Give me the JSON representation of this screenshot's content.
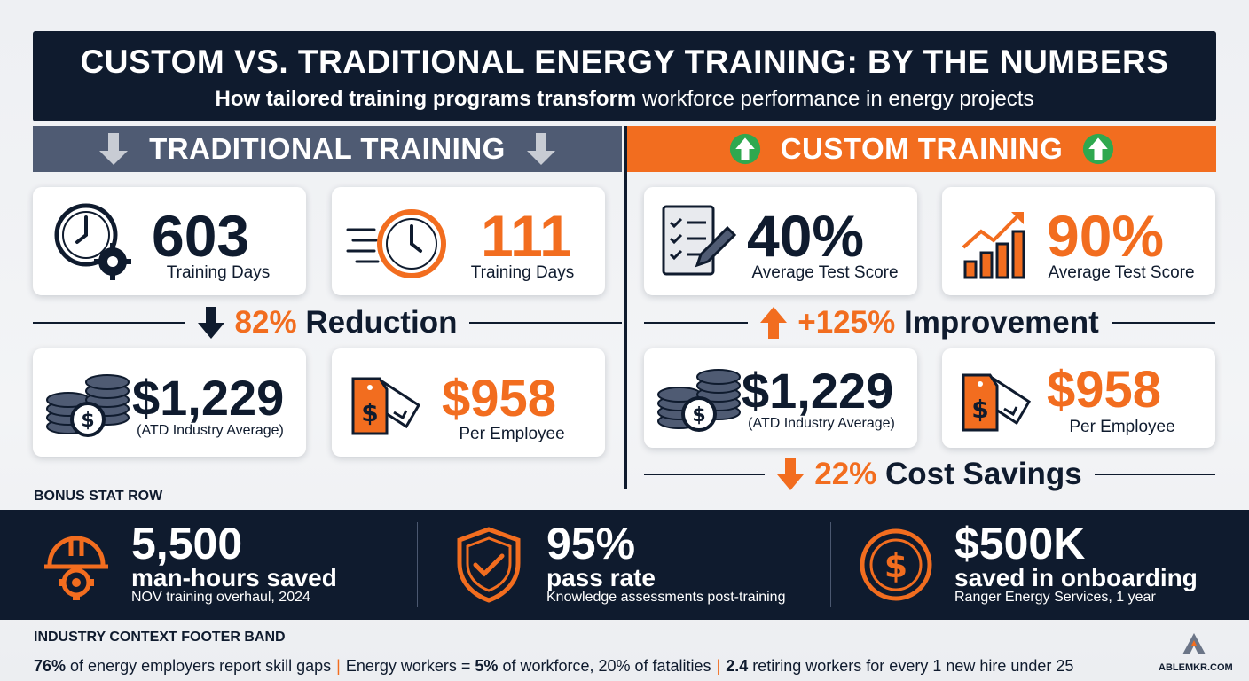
{
  "header": {
    "title": "CUSTOM VS. TRADITIONAL ENERGY TRAINING: BY THE NUMBERS",
    "subtitle_bold": "How tailored training programs transform",
    "subtitle_rest": "workforce performance in energy projects"
  },
  "traditional": {
    "heading": "TRADITIONAL TRAINING",
    "days_card": {
      "value": "603",
      "label": "Training Days"
    },
    "days_card2": {
      "value": "111",
      "label": "Training Days"
    },
    "reduction": {
      "percent": "82%",
      "label": "Reduction"
    },
    "cost_card": {
      "value": "$1,229",
      "label": "(ATD Industry Average)"
    },
    "cost_card2": {
      "value": "$958",
      "label": "Per Employee"
    }
  },
  "custom": {
    "heading": "CUSTOM TRAINING",
    "score_card": {
      "value": "40%",
      "label": "Average Test Score"
    },
    "score_card2": {
      "value": "90%",
      "label": "Average Test Score"
    },
    "improvement": {
      "percent": "+125%",
      "label": "Improvement"
    },
    "cost_card": {
      "value": "$1,229",
      "label": "(ATD Industry Average)"
    },
    "cost_card2": {
      "value": "$958",
      "label": "Per Employee"
    },
    "savings": {
      "percent": "22%",
      "label": "Cost Savings"
    }
  },
  "bonus": {
    "label": "BONUS STAT ROW",
    "stats": [
      {
        "value": "5,500",
        "sub": "man-hours saved",
        "note": "NOV training overhaul, 2024",
        "icon": "hardhat-gear-icon"
      },
      {
        "value": "95%",
        "sub": "pass rate",
        "note": "Knowledge assessments post-training",
        "icon": "shield-check-icon"
      },
      {
        "value": "$500K",
        "sub": "saved in onboarding",
        "note": "Ranger Energy Services, 1 year",
        "icon": "dollar-coin-icon"
      }
    ]
  },
  "footer": {
    "label": "INDUSTRY CONTEXT FOOTER BAND",
    "part1_bold": "76%",
    "part1_rest": " of energy employers report skill gaps",
    "part2_pre": "Energy workers = ",
    "part2_bold": "5%",
    "part2_rest": " of workforce, 20% of fatalities",
    "part3_bold": "2.4",
    "part3_rest": " retiring workers for every 1 new hire under 25"
  },
  "brand": {
    "name": "ABLEMKR.COM"
  },
  "colors": {
    "navy": "#0f1b2e",
    "orange": "#f26d1f",
    "slate": "#4f5b73",
    "green": "#2fa84f"
  }
}
